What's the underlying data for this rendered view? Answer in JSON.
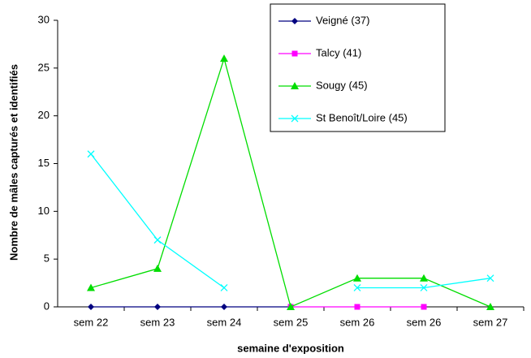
{
  "chart_data": {
    "type": "line",
    "x_label": "semaine d'exposition",
    "y_label": "Nombre de mâles capturés et identifiés",
    "categories": [
      "sem 22",
      "sem 23",
      "sem 24",
      "sem 25",
      "sem 26",
      "sem 26",
      "sem 27"
    ],
    "series": [
      {
        "name": "Veigné (37)",
        "color": "#000080",
        "marker": "diamond",
        "values": [
          0,
          0,
          0,
          0,
          null,
          null,
          null
        ]
      },
      {
        "name": "Talcy (41)",
        "color": "#ff00ff",
        "marker": "square",
        "values": [
          null,
          null,
          null,
          0,
          0,
          0,
          null
        ]
      },
      {
        "name": "Sougy (45)",
        "color": "#00dd00",
        "marker": "triangle",
        "values": [
          2,
          4,
          26,
          0,
          3,
          3,
          0
        ]
      },
      {
        "name": "St Benoît/Loire (45)",
        "color": "#00ffff",
        "marker": "cross",
        "values": [
          16,
          7,
          2,
          null,
          2,
          2,
          3
        ]
      }
    ],
    "ylim": [
      0,
      30
    ],
    "yticks": [
      0,
      5,
      10,
      15,
      20,
      25,
      30
    ],
    "grid": false,
    "legend": "upper right"
  }
}
